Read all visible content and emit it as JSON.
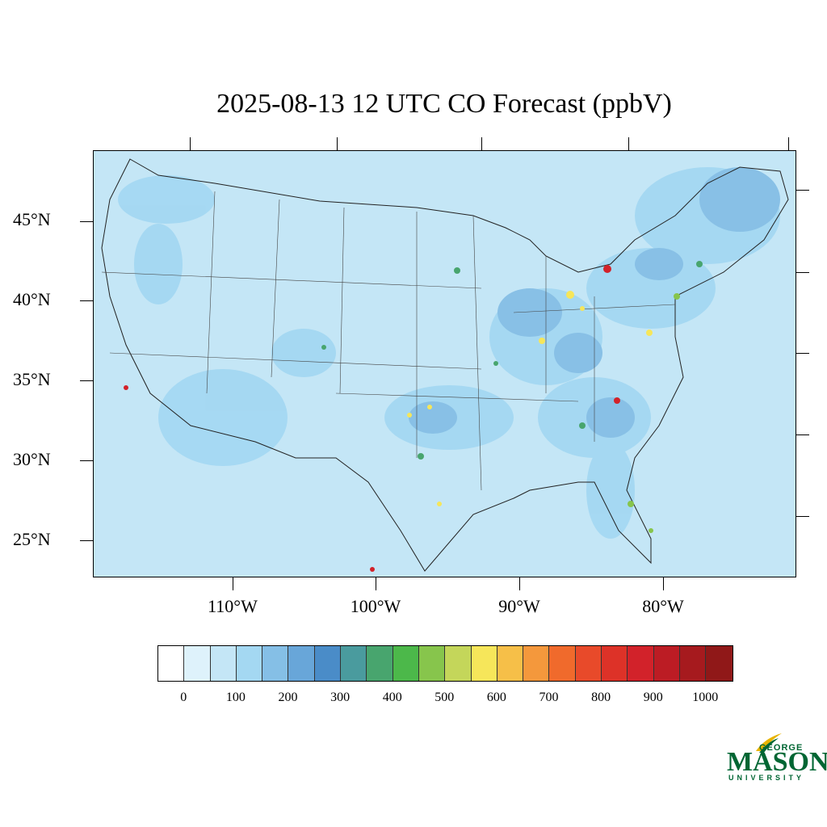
{
  "title": "2025-08-13 12 UTC CO Forecast (ppbV)",
  "lat_labels": [
    "45°N",
    "40°N",
    "35°N",
    "30°N",
    "25°N"
  ],
  "lon_labels": [
    "110°W",
    "100°W",
    "90°W",
    "80°W"
  ],
  "colorbar": {
    "colors": [
      "#ffffff",
      "#def2fb",
      "#c4e6f6",
      "#a4d8f2",
      "#85bfe6",
      "#68a6d9",
      "#4a8cc8",
      "#4a9b9e",
      "#48a56e",
      "#4cb84a",
      "#87c54c",
      "#c4d65a",
      "#f6e65a",
      "#f6bf48",
      "#f4983c",
      "#f06a2c",
      "#e84a2a",
      "#dd3228",
      "#d2222a",
      "#bc1c24",
      "#a61a1e",
      "#901818"
    ],
    "labels": [
      "0",
      "100",
      "200",
      "300",
      "400",
      "500",
      "600",
      "700",
      "800",
      "900",
      "1000"
    ]
  },
  "map_colors": {
    "background": "#c4e6f6",
    "level_light": "#a4d8f2",
    "level_mid": "#85bfe6",
    "hotspot_green": "#48a56e",
    "hotspot_yellow": "#f6e65a",
    "hotspot_red": "#d2222a"
  },
  "logo": {
    "george": "GEORGE",
    "mason": "MASON",
    "university": "UNIVERSITY"
  }
}
